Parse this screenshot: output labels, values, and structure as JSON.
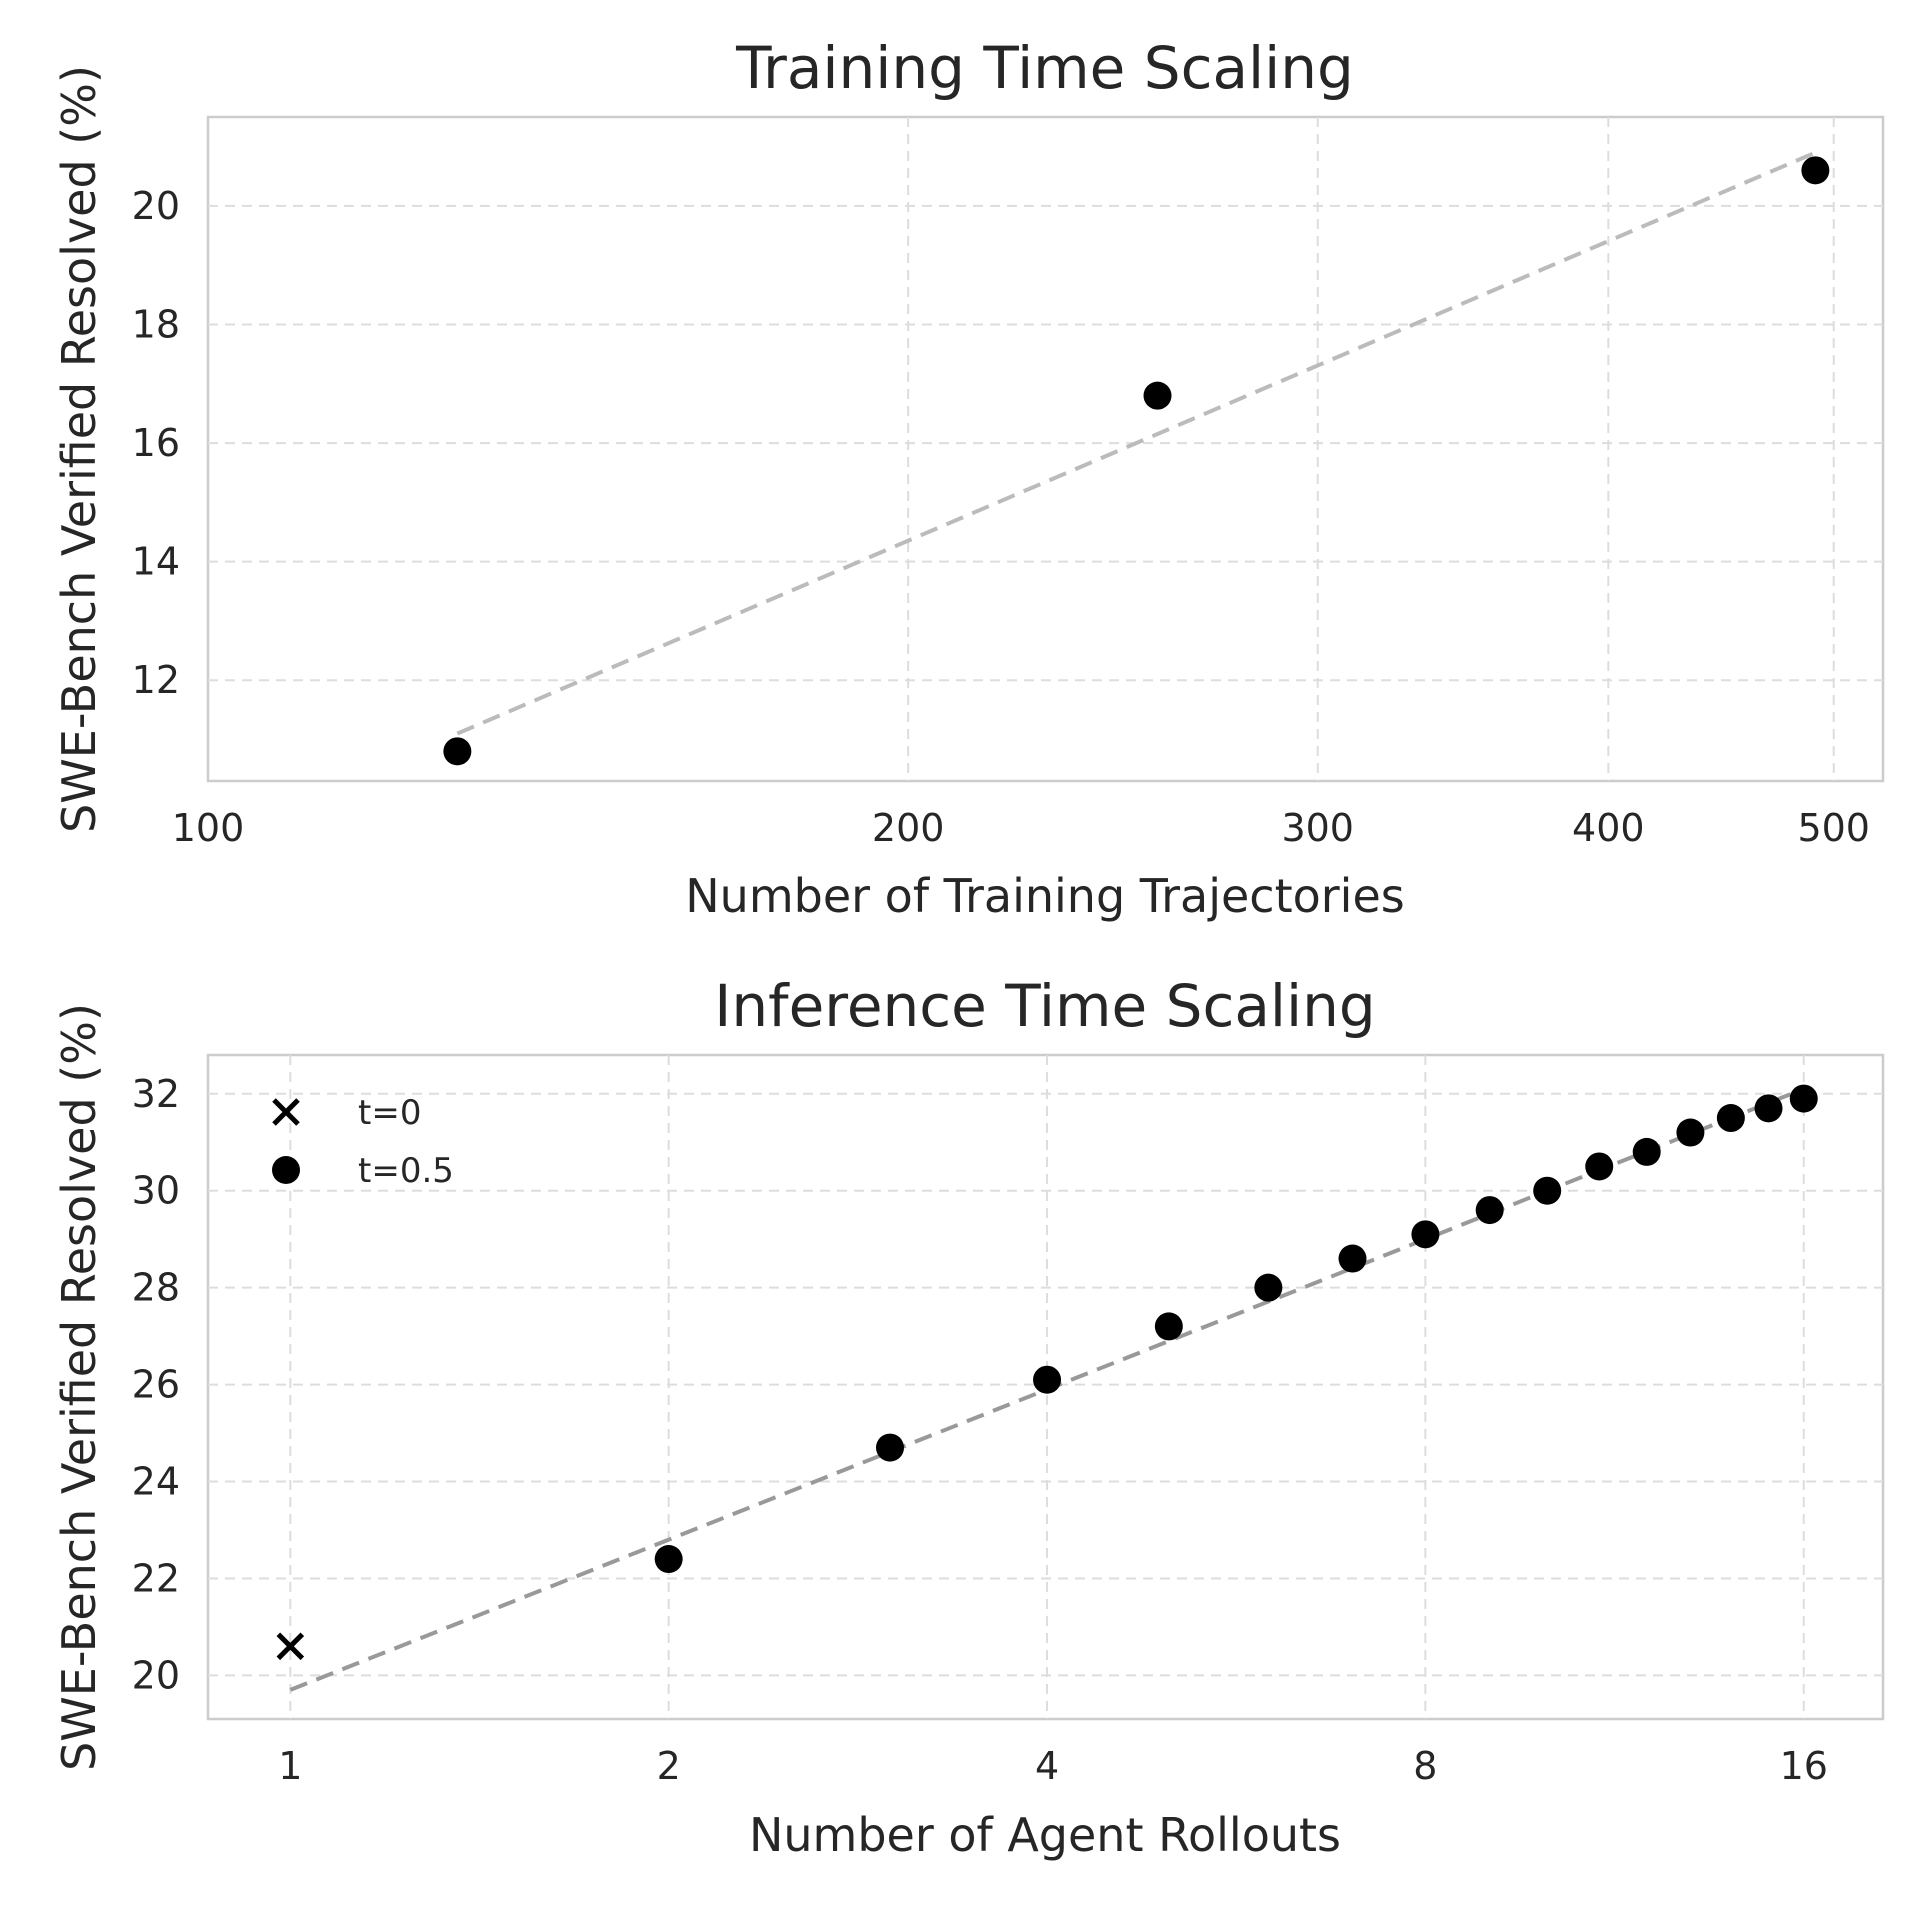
{
  "chart_data": [
    {
      "type": "scatter",
      "title": "Training Time Scaling",
      "xlabel": "Number of Training Trajectories",
      "ylabel": "SWE-Bench Verified Resolved (%)",
      "xscale": "log",
      "xlim": [
        100,
        525
      ],
      "ylim": [
        10.3,
        21.5
      ],
      "xticks": [
        100,
        200,
        300,
        400,
        500
      ],
      "yticks": [
        12,
        14,
        16,
        18,
        20
      ],
      "grid": true,
      "series": [
        {
          "marker": "circle",
          "color": "#000000",
          "x": [
            128,
            256,
            491
          ],
          "y": [
            10.8,
            16.8,
            20.6
          ]
        }
      ],
      "trendline": {
        "style": "dashed",
        "color": "#bbbbbb",
        "x": [
          128,
          491
        ],
        "y": [
          11.1,
          20.9
        ]
      }
    },
    {
      "type": "scatter",
      "title": "Inference Time Scaling",
      "xlabel": "Number of Agent Rollouts",
      "ylabel": "SWE-Bench Verified Resolved (%)",
      "xscale": "log2",
      "xlim": [
        0.86,
        18.5
      ],
      "ylim": [
        19.1,
        32.8
      ],
      "xticks": [
        1,
        2,
        4,
        8,
        16
      ],
      "yticks": [
        20,
        22,
        24,
        26,
        28,
        30,
        32
      ],
      "grid": true,
      "legend_position": "top-left",
      "series": [
        {
          "name": "t=0",
          "marker": "x",
          "color": "#000000",
          "x": [
            1
          ],
          "y": [
            20.6
          ]
        },
        {
          "name": "t=0.5",
          "marker": "circle",
          "color": "#000000",
          "x": [
            2,
            3,
            4,
            5,
            6,
            7,
            8,
            9,
            10,
            11,
            12,
            13,
            14,
            15,
            16
          ],
          "y": [
            22.4,
            24.7,
            26.1,
            27.2,
            28.0,
            28.6,
            29.1,
            29.6,
            30.0,
            30.5,
            30.8,
            31.2,
            31.5,
            31.7,
            31.9
          ]
        }
      ],
      "trendline": {
        "style": "dashed",
        "color": "#999999",
        "x": [
          1,
          16
        ],
        "y": [
          19.7,
          32.1
        ]
      }
    }
  ]
}
